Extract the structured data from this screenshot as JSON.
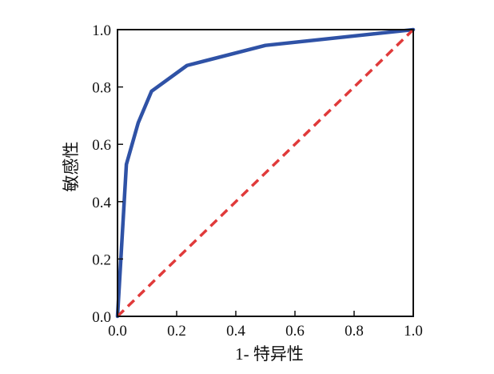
{
  "chart_data": {
    "type": "line",
    "title": "",
    "xlabel": "1- 特异性",
    "ylabel": "敏感性",
    "xlim": [
      0,
      1
    ],
    "ylim": [
      0,
      1
    ],
    "x_ticks": [
      "0.0",
      "0.2",
      "0.4",
      "0.6",
      "0.8",
      "1.0"
    ],
    "y_ticks": [
      "0.0",
      "0.2",
      "0.4",
      "0.6",
      "0.8",
      "1.0"
    ],
    "grid": false,
    "legend": "none",
    "series": [
      {
        "style": "solid",
        "color": "#2f52a6",
        "x": [
          0.0,
          0.03,
          0.07,
          0.115,
          0.235,
          0.5,
          1.0
        ],
        "y": [
          0.0,
          0.53,
          0.675,
          0.785,
          0.875,
          0.945,
          1.0
        ]
      },
      {
        "style": "dashed",
        "color": "#e03a3a",
        "x": [
          0.0,
          1.0
        ],
        "y": [
          0.0,
          1.0
        ]
      }
    ]
  }
}
